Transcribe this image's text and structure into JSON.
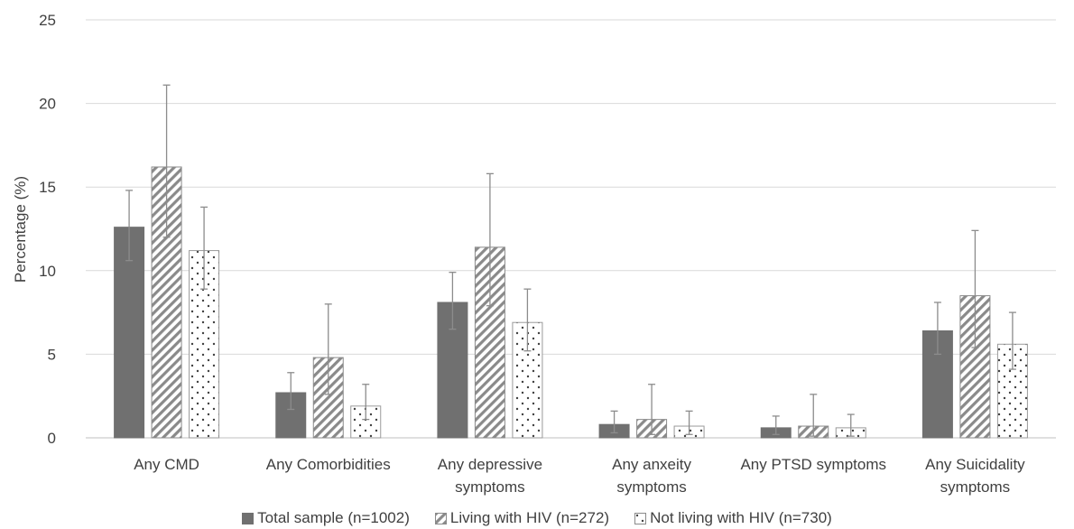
{
  "chart_data": {
    "type": "bar",
    "title": "",
    "xlabel": "",
    "ylabel": "Percentage (%)",
    "ylim": [
      0,
      25
    ],
    "yticks": [
      0,
      5,
      10,
      15,
      20,
      25
    ],
    "grid": true,
    "legend_position": "bottom",
    "categories": [
      [
        "Any CMD"
      ],
      [
        "Any Comorbidities"
      ],
      [
        "Any depressive",
        "symptoms"
      ],
      [
        "Any anxeity",
        "symptoms"
      ],
      [
        "Any PTSD symptoms"
      ],
      [
        "Any Suicidality",
        "symptoms"
      ]
    ],
    "series": [
      {
        "name": "Total sample (n=1002)",
        "pattern": "solid",
        "color": "#707070",
        "values": [
          12.6,
          2.7,
          8.1,
          0.8,
          0.6,
          6.4
        ],
        "error_high": [
          14.8,
          3.9,
          9.9,
          1.6,
          1.3,
          8.1
        ],
        "error_low": [
          10.6,
          1.7,
          6.5,
          0.3,
          0.2,
          5.0
        ]
      },
      {
        "name": "Living with HIV (n=272)",
        "pattern": "diagonal",
        "color": "#707070",
        "values": [
          16.2,
          4.8,
          11.4,
          1.1,
          0.7,
          8.5
        ],
        "error_high": [
          21.1,
          8.0,
          15.8,
          3.2,
          2.6,
          12.4
        ],
        "error_low": [
          12.0,
          2.6,
          7.9,
          0.2,
          0.1,
          5.4
        ]
      },
      {
        "name": "Not living with HIV (n=730)",
        "pattern": "dots",
        "color": "#707070",
        "values": [
          11.2,
          1.9,
          6.9,
          0.7,
          0.6,
          5.6
        ],
        "error_high": [
          13.8,
          3.2,
          8.9,
          1.6,
          1.4,
          7.5
        ],
        "error_low": [
          8.9,
          1.1,
          5.2,
          0.2,
          0.1,
          4.1
        ]
      }
    ]
  }
}
